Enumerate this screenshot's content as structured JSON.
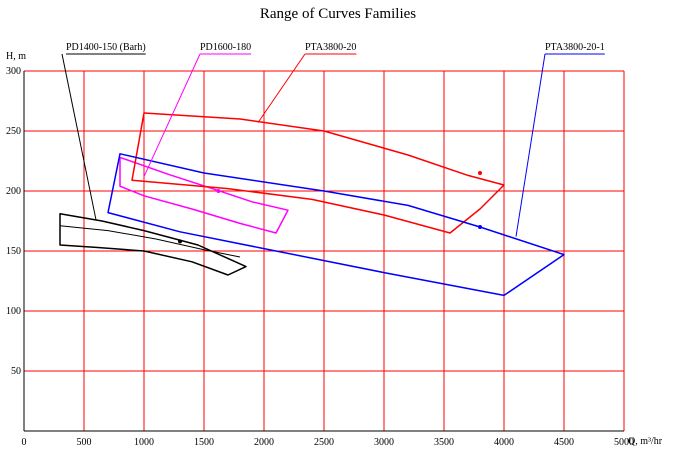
{
  "chart_data": {
    "type": "line",
    "title": "Range of Curves Families",
    "xlabel": "Q, m³/hr",
    "ylabel": "H, m",
    "xlim": [
      0,
      5000
    ],
    "ylim": [
      0,
      300
    ],
    "xticks": [
      0,
      500,
      1000,
      1500,
      2000,
      2500,
      3000,
      3500,
      4000,
      4500,
      5000
    ],
    "yticks": [
      50,
      100,
      150,
      200,
      250,
      300
    ],
    "grid": true,
    "grid_color": "#ff0000",
    "series": [
      {
        "name": "PD1400-150 (Barh)",
        "color": "#000000",
        "outline": [
          [
            300,
            181
          ],
          [
            650,
            175
          ],
          [
            1000,
            167
          ],
          [
            1450,
            155
          ],
          [
            1850,
            137
          ],
          [
            1700,
            130
          ],
          [
            1400,
            141
          ],
          [
            1000,
            150
          ],
          [
            600,
            153
          ],
          [
            300,
            155
          ]
        ],
        "inner_curve": [
          [
            300,
            171
          ],
          [
            700,
            167
          ],
          [
            1100,
            160
          ],
          [
            1500,
            151
          ],
          [
            1800,
            145
          ]
        ],
        "marker": [
          1300,
          158
        ]
      },
      {
        "name": "PD1600-180",
        "color": "#ff00ff",
        "outline": [
          [
            800,
            228
          ],
          [
            1200,
            214
          ],
          [
            1600,
            201
          ],
          [
            1900,
            191
          ],
          [
            2200,
            184
          ],
          [
            2100,
            165
          ],
          [
            1800,
            173
          ],
          [
            1400,
            185
          ],
          [
            1000,
            196
          ],
          [
            800,
            204
          ]
        ],
        "marker": [
          1620,
          200
        ]
      },
      {
        "name": "PTA3800-20",
        "color": "#ff0000",
        "outline": [
          [
            1000,
            265
          ],
          [
            1800,
            260
          ],
          [
            2500,
            250
          ],
          [
            3200,
            230
          ],
          [
            3700,
            213
          ],
          [
            4000,
            205
          ],
          [
            3800,
            185
          ],
          [
            3550,
            165
          ],
          [
            3000,
            180
          ],
          [
            2400,
            193
          ],
          [
            1700,
            202
          ],
          [
            900,
            209
          ]
        ],
        "marker": [
          3800,
          215
        ]
      },
      {
        "name": "PTA3800-20-1",
        "color": "#0000ff",
        "outline": [
          [
            800,
            231
          ],
          [
            1500,
            215
          ],
          [
            2500,
            200
          ],
          [
            3200,
            188
          ],
          [
            3800,
            170
          ],
          [
            4500,
            147
          ],
          [
            4000,
            113
          ],
          [
            3000,
            132
          ],
          [
            2000,
            152
          ],
          [
            1300,
            166
          ],
          [
            700,
            182
          ]
        ],
        "marker": [
          3800,
          170
        ]
      }
    ],
    "callouts": [
      "PD1400-150 (Barh)",
      "PD1600-180",
      "PTA3800-20",
      "PTA3800-20-1"
    ]
  }
}
